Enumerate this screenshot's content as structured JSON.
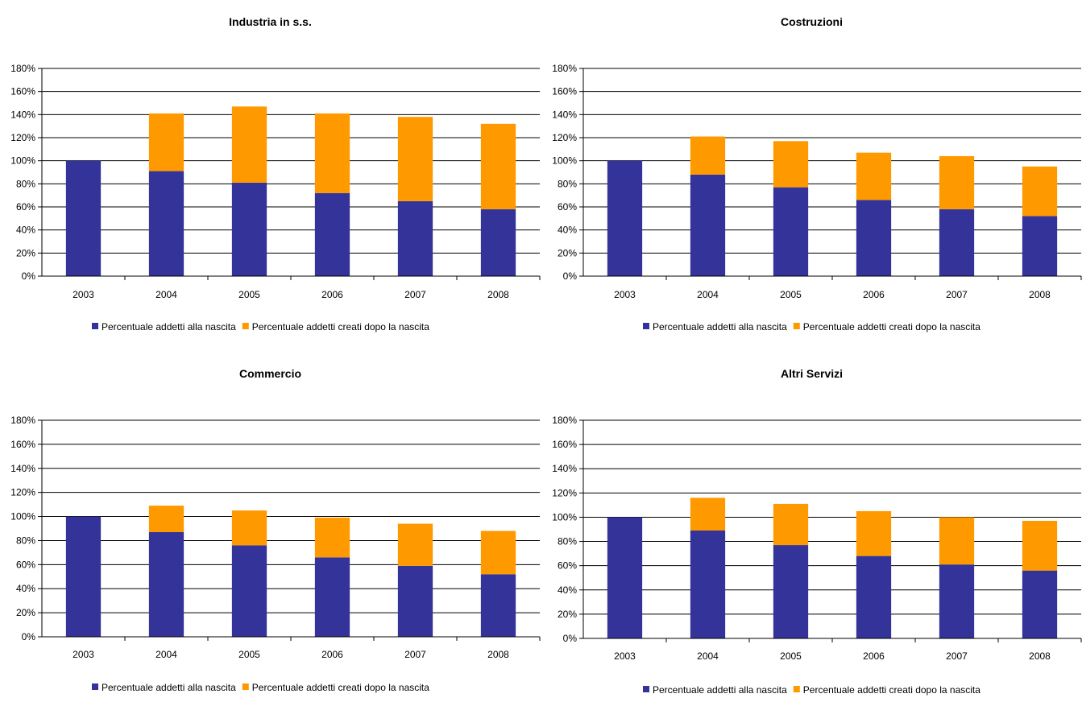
{
  "colors": {
    "birth": "#333399",
    "after": "#FF9900",
    "axis": "#000000",
    "grid": "#000000"
  },
  "chart_data": [
    {
      "type": "bar",
      "stacked": true,
      "title": "Industria in s.s.",
      "categories": [
        "2003",
        "2004",
        "2005",
        "2006",
        "2007",
        "2008"
      ],
      "series": [
        {
          "name": "Percentuale addetti alla nascita",
          "values": [
            100,
            91,
            81,
            72,
            65,
            58
          ]
        },
        {
          "name": "Percentuale addetti creati dopo la nascita",
          "values": [
            0,
            50,
            66,
            69,
            73,
            74
          ]
        }
      ],
      "ylim": [
        0,
        180
      ],
      "yticks": [
        "0%",
        "20%",
        "40%",
        "60%",
        "80%",
        "100%",
        "120%",
        "140%",
        "160%",
        "180%"
      ],
      "grid": true,
      "legend": "bottom"
    },
    {
      "type": "bar",
      "stacked": true,
      "title": "Costruzioni",
      "categories": [
        "2003",
        "2004",
        "2005",
        "2006",
        "2007",
        "2008"
      ],
      "series": [
        {
          "name": "Percentuale addetti alla nascita",
          "values": [
            100,
            88,
            77,
            66,
            58,
            52
          ]
        },
        {
          "name": "Percentuale addetti creati dopo la nascita",
          "values": [
            0,
            33,
            40,
            41,
            46,
            43
          ]
        }
      ],
      "ylim": [
        0,
        180
      ],
      "yticks": [
        "0%",
        "20%",
        "40%",
        "60%",
        "80%",
        "100%",
        "120%",
        "140%",
        "160%",
        "180%"
      ],
      "grid": true,
      "legend": "bottom"
    },
    {
      "type": "bar",
      "stacked": true,
      "title": "Commercio",
      "categories": [
        "2003",
        "2004",
        "2005",
        "2006",
        "2007",
        "2008"
      ],
      "series": [
        {
          "name": "Percentuale addetti alla nascita",
          "values": [
            100,
            87,
            76,
            66,
            59,
            52
          ]
        },
        {
          "name": "Percentuale addetti creati dopo la nascita",
          "values": [
            0,
            22,
            29,
            33,
            35,
            36
          ]
        }
      ],
      "ylim": [
        0,
        180
      ],
      "yticks": [
        "0%",
        "20%",
        "40%",
        "60%",
        "80%",
        "100%",
        "120%",
        "140%",
        "160%",
        "180%"
      ],
      "grid": true,
      "legend": "bottom"
    },
    {
      "type": "bar",
      "stacked": true,
      "title": "Altri Servizi",
      "categories": [
        "2003",
        "2004",
        "2005",
        "2006",
        "2007",
        "2008"
      ],
      "series": [
        {
          "name": "Percentuale addetti alla nascita",
          "values": [
            100,
            89,
            77,
            68,
            61,
            56
          ]
        },
        {
          "name": "Percentuale addetti creati dopo la nascita",
          "values": [
            0,
            27,
            34,
            37,
            39,
            41
          ]
        }
      ],
      "ylim": [
        0,
        180
      ],
      "yticks": [
        "0%",
        "20%",
        "40%",
        "60%",
        "80%",
        "100%",
        "120%",
        "140%",
        "160%",
        "180%"
      ],
      "grid": true,
      "legend": "bottom"
    }
  ]
}
